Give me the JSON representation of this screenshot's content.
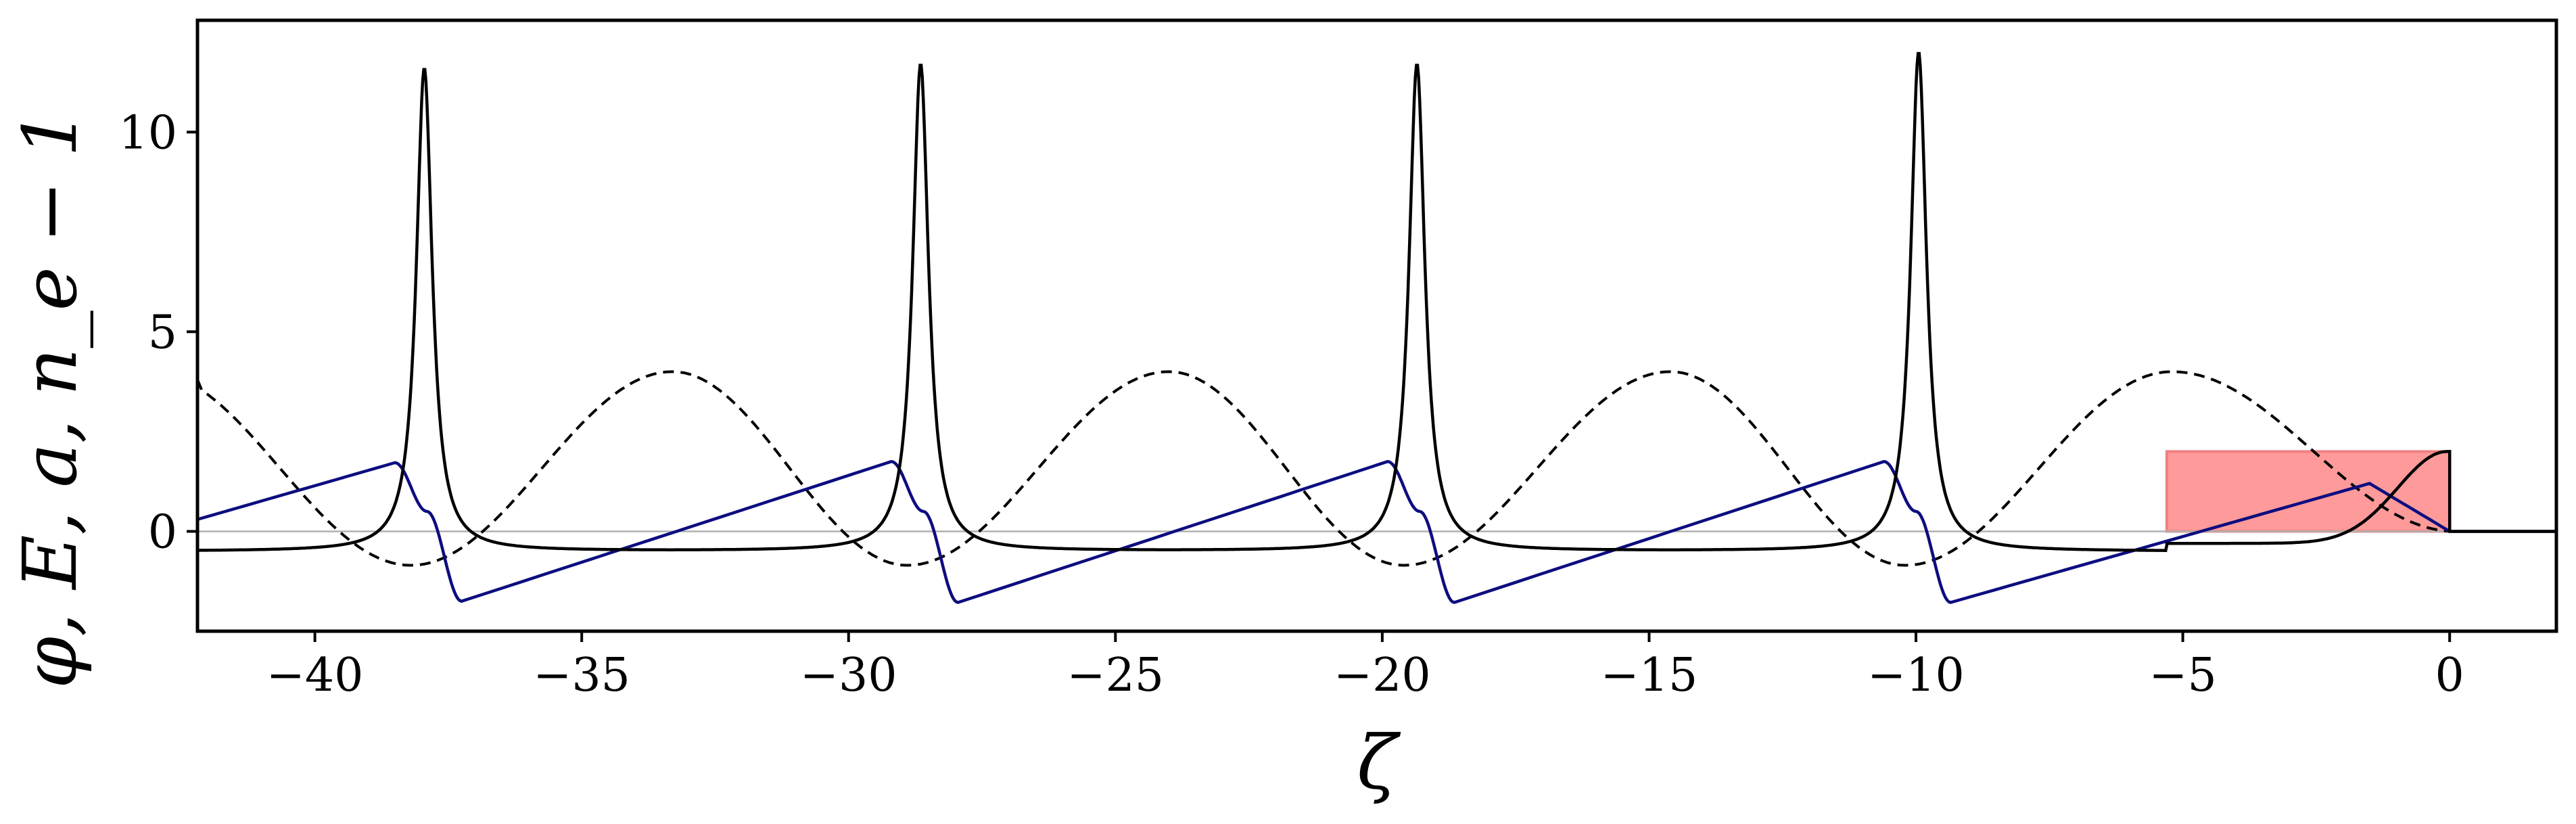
{
  "chart_data": {
    "type": "line",
    "title": "",
    "xlabel": "ζ",
    "ylabel": "φ, E, a, n_e − 1",
    "xlim": [
      -42.2,
      2.0
    ],
    "ylim": [
      -2.5,
      12.8
    ],
    "xticks": [
      -40,
      -35,
      -30,
      -25,
      -20,
      -15,
      -10,
      -5,
      0
    ],
    "xtick_labels": [
      "−40",
      "−35",
      "−30",
      "−25",
      "−20",
      "−15",
      "−10",
      "−5",
      "0"
    ],
    "yticks": [
      0,
      5,
      10
    ],
    "ytick_labels": [
      "0",
      "5",
      "10"
    ],
    "grid": false,
    "legend": false,
    "zero_line": {
      "y": 0,
      "color": "#b0b0b0"
    },
    "shaded_region": {
      "x": [
        -5.3,
        0.0
      ],
      "y": [
        0,
        2.0
      ],
      "color": "#ff9a9a"
    },
    "series": [
      {
        "style": "solid",
        "color": "#000000",
        "peaks": [
          {
            "x": -37.95,
            "y": 11.6
          },
          {
            "x": -28.65,
            "y": 11.7
          },
          {
            "x": -19.35,
            "y": 11.7
          },
          {
            "x": -9.95,
            "y": 12.0
          }
        ],
        "baseline": -0.5,
        "driver_peak": {
          "x": -0.05,
          "y": 2.0
        }
      },
      {
        "style": "solid",
        "color": "#0d0d80",
        "points": [
          [
            -42.2,
            0.3
          ],
          [
            -38.5,
            1.72
          ],
          [
            -37.9,
            0.5
          ],
          [
            -37.25,
            -1.75
          ],
          [
            -29.2,
            1.75
          ],
          [
            -28.6,
            0.5
          ],
          [
            -27.95,
            -1.78
          ],
          [
            -19.9,
            1.75
          ],
          [
            -19.3,
            0.5
          ],
          [
            -18.65,
            -1.78
          ],
          [
            -10.6,
            1.75
          ],
          [
            -10.0,
            0.5
          ],
          [
            -9.35,
            -1.78
          ],
          [
            -1.5,
            1.2
          ],
          [
            0.0,
            0.0
          ],
          [
            2.0,
            0.0
          ]
        ]
      },
      {
        "style": "dashed",
        "color": "#000000",
        "amplitude": 4.0,
        "offset": 0.0,
        "minimum": -0.85,
        "maxima_x": [
          -33.3,
          -24.0,
          -14.6,
          -5.2
        ],
        "minima_x": [
          -38.2,
          -28.9,
          -19.6,
          -10.2
        ]
      }
    ]
  }
}
